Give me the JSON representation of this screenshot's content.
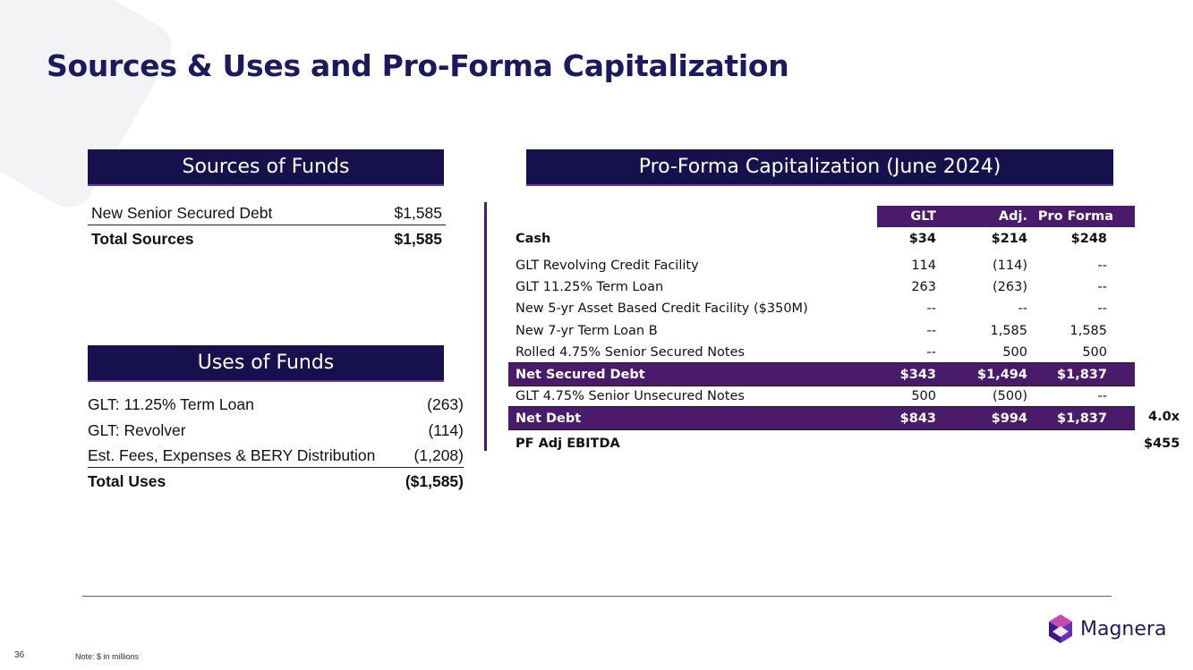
{
  "title": "Sources & Uses and Pro-Forma Capitalization",
  "sources": {
    "header": "Sources of Funds",
    "rows": [
      {
        "label": "New Senior Secured Debt",
        "value": "$1,585"
      }
    ],
    "total": {
      "label": "Total Sources",
      "value": "$1,585"
    }
  },
  "uses": {
    "header": "Uses of Funds",
    "rows": [
      {
        "label": "GLT: 11.25% Term Loan",
        "value": "(263)"
      },
      {
        "label": "GLT: Revolver",
        "value": "(114)"
      },
      {
        "label": "Est. Fees, Expenses & BERY Distribution",
        "value": "(1,208)"
      }
    ],
    "total": {
      "label": "Total Uses",
      "value": "($1,585)"
    }
  },
  "cap": {
    "header": "Pro-Forma Capitalization (June 2024)",
    "columns": [
      "GLT",
      "Adj.",
      "Pro Forma"
    ],
    "rows": [
      {
        "label": "Cash",
        "glt": "$34",
        "adj": "$214",
        "pf": "$248"
      },
      {
        "label": "GLT Revolving Credit Facility",
        "glt": "114",
        "adj": "(114)",
        "pf": "--"
      },
      {
        "label": "GLT 11.25% Term Loan",
        "glt": "263",
        "adj": "(263)",
        "pf": "--"
      },
      {
        "label": "New 5-yr Asset Based Credit Facility ($350M)",
        "glt": "--",
        "adj": "--",
        "pf": "--"
      },
      {
        "label": "New 7-yr Term Loan B",
        "glt": "--",
        "adj": "1,585",
        "pf": "1,585"
      },
      {
        "label": "Rolled 4.75% Senior Secured Notes",
        "glt": "--",
        "adj": "500",
        "pf": "500"
      },
      {
        "label": "Net Secured Debt",
        "glt": "$343",
        "adj": "$1,494",
        "pf": "$1,837"
      },
      {
        "label": "GLT 4.75% Senior Unsecured Notes",
        "glt": "500",
        "adj": "(500)",
        "pf": "--"
      },
      {
        "label": "Net Debt",
        "glt": "$843",
        "adj": "$994",
        "pf": "$1,837",
        "extra": "4.0x"
      },
      {
        "label": "PF Adj EBITDA",
        "extra": "$455"
      }
    ]
  },
  "footer": {
    "page": "36",
    "note": "Note: $ in millions",
    "logo": "Magnera"
  },
  "colors": {
    "navy": "#16114c",
    "purple": "#4a1b6b",
    "title": "#1c1a5e"
  }
}
